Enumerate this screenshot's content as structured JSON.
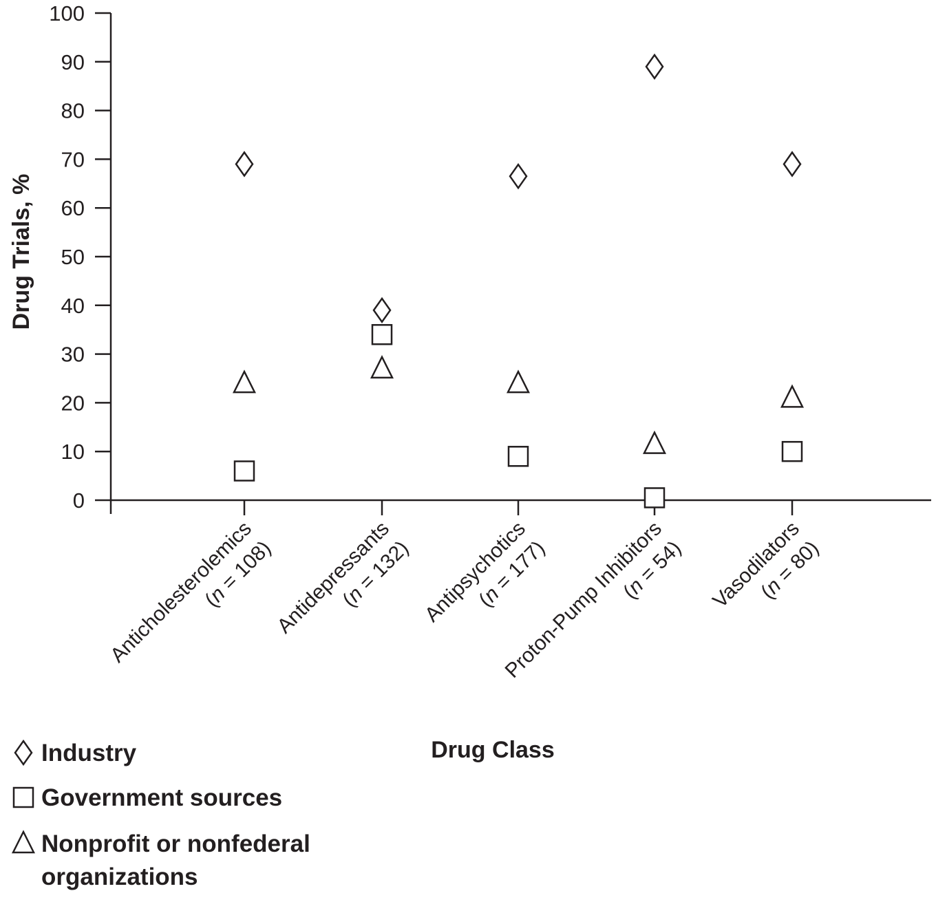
{
  "chart_data": {
    "type": "scatter",
    "title": "",
    "xlabel": "Drug Class",
    "ylabel": "Drug Trials, %",
    "ylim": [
      0,
      100
    ],
    "yticks": [
      0,
      10,
      20,
      30,
      40,
      50,
      60,
      70,
      80,
      90,
      100
    ],
    "grid": false,
    "legend_position": "bottom-left",
    "categories": [
      {
        "name": "Anticholesterolemics",
        "n_label": "(n = 108)",
        "n": "108"
      },
      {
        "name": "Antidepressants",
        "n_label": "(n = 132)",
        "n": "132"
      },
      {
        "name": "Antipsychotics",
        "n_label": "(n = 177)",
        "n": "177"
      },
      {
        "name": "Proton-Pump Inhibitors",
        "n_label": "(n = 54)",
        "n": "54"
      },
      {
        "name": "Vasodilators",
        "n_label": "(n = 80)",
        "n": "80"
      }
    ],
    "series": [
      {
        "name": "Industry",
        "marker": "diamond",
        "values": [
          69,
          39,
          66.5,
          89,
          69
        ]
      },
      {
        "name": "Government sources",
        "marker": "square",
        "values": [
          6,
          34,
          9,
          0.5,
          10
        ]
      },
      {
        "name": "Nonprofit or nonfederal organizations",
        "marker": "triangle",
        "values": [
          24,
          27,
          24,
          11.5,
          21
        ]
      }
    ]
  },
  "legend": {
    "items": [
      {
        "marker": "diamond",
        "lines": [
          "Industry"
        ]
      },
      {
        "marker": "square",
        "lines": [
          "Government sources"
        ]
      },
      {
        "marker": "triangle",
        "lines": [
          "Nonprofit or nonfederal",
          "organizations"
        ]
      }
    ]
  },
  "colors": {
    "ink": "#231f20",
    "background": "#ffffff"
  }
}
